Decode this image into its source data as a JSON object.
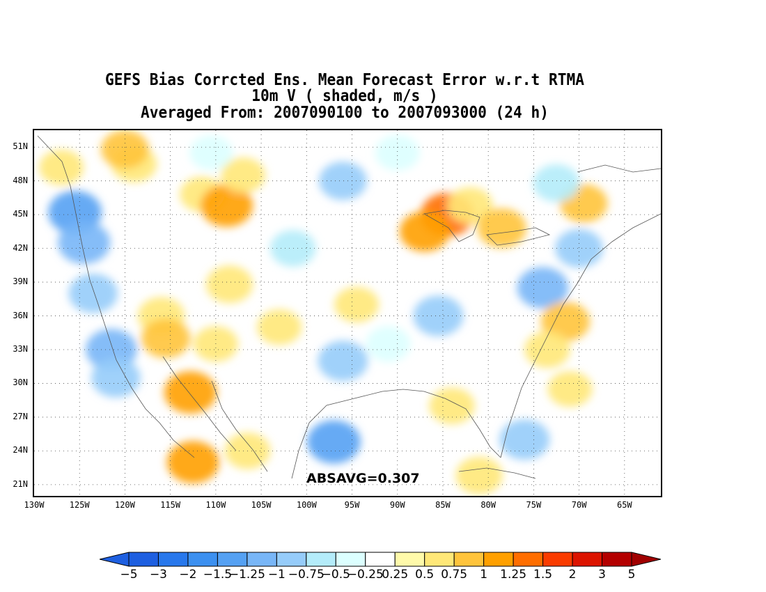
{
  "title": {
    "line1": "GEFS Bias Corrcted Ens. Mean Forecast Error w.r.t RTMA",
    "line2": "10m V ( shaded, m/s )",
    "line3": "Averaged From: 2007090100 to 2007093000 (24 h)"
  },
  "map": {
    "lat_labels": [
      "51N",
      "48N",
      "45N",
      "42N",
      "39N",
      "36N",
      "33N",
      "30N",
      "27N",
      "24N",
      "21N"
    ],
    "lon_labels": [
      "130W",
      "125W",
      "120W",
      "115W",
      "110W",
      "105W",
      "100W",
      "95W",
      "90W",
      "85W",
      "80W",
      "75W",
      "70W",
      "65W"
    ],
    "lat_range": [
      20,
      52.5
    ],
    "lon_range": [
      -130,
      -61
    ],
    "grid": "dotted",
    "absavg_text": "ABSAVG=0.307",
    "field_patches": [
      {
        "lon": -125.5,
        "lat": 45.2,
        "v": -1.3
      },
      {
        "lon": -124.5,
        "lat": 42.5,
        "v": -1.2
      },
      {
        "lon": -123.5,
        "lat": 38.0,
        "v": -0.9
      },
      {
        "lon": -121.5,
        "lat": 33.0,
        "v": -1.1
      },
      {
        "lon": -121.0,
        "lat": 30.5,
        "v": -0.9
      },
      {
        "lon": -119.0,
        "lat": 49.5,
        "v": 0.6
      },
      {
        "lon": -120.0,
        "lat": 50.8,
        "v": 0.8
      },
      {
        "lon": -127.0,
        "lat": 49.2,
        "v": 0.5
      },
      {
        "lon": -111.5,
        "lat": 46.8,
        "v": 0.5
      },
      {
        "lon": -108.8,
        "lat": 45.8,
        "v": 1.2
      },
      {
        "lon": -107.0,
        "lat": 48.5,
        "v": 0.5
      },
      {
        "lon": -110.5,
        "lat": 50.5,
        "v": -0.4
      },
      {
        "lon": -96.0,
        "lat": 48.0,
        "v": -0.8
      },
      {
        "lon": -90.0,
        "lat": 50.5,
        "v": -0.5
      },
      {
        "lon": -84.5,
        "lat": 45.0,
        "v": 1.3
      },
      {
        "lon": -87.0,
        "lat": 43.5,
        "v": 1.0
      },
      {
        "lon": -82.0,
        "lat": 45.8,
        "v": 0.6
      },
      {
        "lon": -78.5,
        "lat": 43.8,
        "v": 0.9
      },
      {
        "lon": -69.5,
        "lat": 46.0,
        "v": 0.8
      },
      {
        "lon": -72.5,
        "lat": 47.8,
        "v": -0.7
      },
      {
        "lon": -70.0,
        "lat": 42.0,
        "v": -0.8
      },
      {
        "lon": -74.0,
        "lat": 38.5,
        "v": -1.1
      },
      {
        "lon": -71.5,
        "lat": 35.5,
        "v": 0.9
      },
      {
        "lon": -73.5,
        "lat": 33.0,
        "v": 0.6
      },
      {
        "lon": -71.0,
        "lat": 29.5,
        "v": 0.5
      },
      {
        "lon": -116.0,
        "lat": 36.0,
        "v": 0.7
      },
      {
        "lon": -115.5,
        "lat": 34.0,
        "v": 0.9
      },
      {
        "lon": -112.8,
        "lat": 29.2,
        "v": 1.2
      },
      {
        "lon": -112.5,
        "lat": 23.0,
        "v": 1.2
      },
      {
        "lon": -108.5,
        "lat": 38.8,
        "v": 0.7
      },
      {
        "lon": -106.5,
        "lat": 24.0,
        "v": 0.6
      },
      {
        "lon": -110.0,
        "lat": 33.5,
        "v": 0.5
      },
      {
        "lon": -96.0,
        "lat": 32.0,
        "v": -1.0
      },
      {
        "lon": -97.0,
        "lat": 24.8,
        "v": -1.3
      },
      {
        "lon": -85.5,
        "lat": 36.0,
        "v": -1.0
      },
      {
        "lon": -84.0,
        "lat": 28.0,
        "v": 0.6
      },
      {
        "lon": -76.0,
        "lat": 25.0,
        "v": -1.0
      },
      {
        "lon": -81.0,
        "lat": 21.8,
        "v": 0.7
      },
      {
        "lon": -101.5,
        "lat": 42.0,
        "v": -0.6
      },
      {
        "lon": -94.5,
        "lat": 37.0,
        "v": 0.5
      },
      {
        "lon": -91.0,
        "lat": 33.5,
        "v": -0.5
      },
      {
        "lon": -103.0,
        "lat": 35.0,
        "v": 0.5
      }
    ]
  },
  "colorbar": {
    "labels": [
      "−5",
      "−3",
      "−2",
      "−1.5",
      "−1.25",
      "−1",
      "−0.75",
      "−0.5",
      "−0.25",
      "0.25",
      "0.5",
      "0.75",
      "1",
      "1.25",
      "1.5",
      "2",
      "3",
      "5"
    ],
    "colors": [
      "#1e5fe0",
      "#2878ec",
      "#3c90f0",
      "#55a1f3",
      "#78b6f7",
      "#96ccfa",
      "#b4ecfa",
      "#dcffff",
      "#ffffff",
      "#fffaaa",
      "#ffe878",
      "#ffc43c",
      "#ffa000",
      "#ff6e00",
      "#fa3c00",
      "#dc1400",
      "#b40000"
    ],
    "under_color": "#1e5fe0",
    "over_color": "#a00000"
  }
}
